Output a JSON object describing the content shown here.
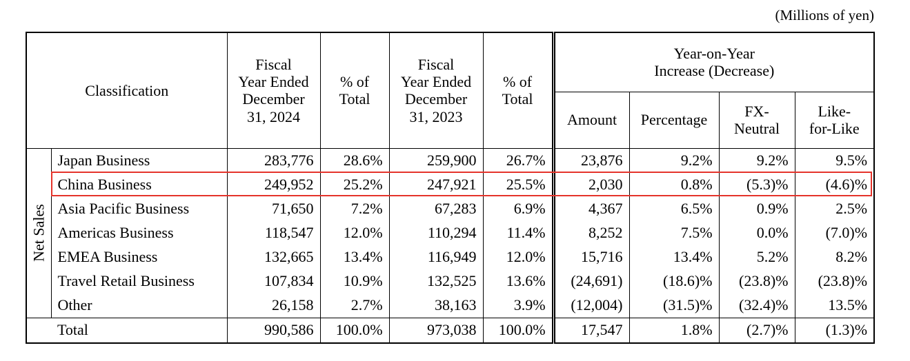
{
  "units_note": "(Millions of yen)",
  "header": {
    "classification": "Classification",
    "fy2024": [
      "Fiscal",
      "Year Ended",
      "December",
      "31, 2024"
    ],
    "pct_total": [
      "% of",
      "Total"
    ],
    "fy2023": [
      "Fiscal",
      "Year Ended",
      "December",
      "31, 2023"
    ],
    "yoy_group": [
      "Year-on-",
      "Year",
      "Increase (Decrease)"
    ],
    "amount": "Amount",
    "percentage": "Percentage",
    "fx_neutral": [
      "FX-",
      "Neutral"
    ],
    "like_for_like": [
      "Like-",
      "for-Like"
    ]
  },
  "net_sales_label": "Net Sales",
  "rows": [
    {
      "name": "Japan Business",
      "fy2024": "283,776",
      "pct2024": "28.6%",
      "fy2023": "259,900",
      "pct2023": "26.7%",
      "amount": "23,876",
      "percentage": "9.2%",
      "fx_neutral": "9.2%",
      "like_for_like": "9.5%"
    },
    {
      "name": "China Business",
      "fy2024": "249,952",
      "pct2024": "25.2%",
      "fy2023": "247,921",
      "pct2023": "25.5%",
      "amount": "2,030",
      "percentage": "0.8%",
      "fx_neutral": "(5.3)%",
      "like_for_like": "(4.6)%"
    },
    {
      "name": "Asia Pacific Business",
      "fy2024": "71,650",
      "pct2024": "7.2%",
      "fy2023": "67,283",
      "pct2023": "6.9%",
      "amount": "4,367",
      "percentage": "6.5%",
      "fx_neutral": "0.9%",
      "like_for_like": "2.5%"
    },
    {
      "name": "Americas Business",
      "fy2024": "118,547",
      "pct2024": "12.0%",
      "fy2023": "110,294",
      "pct2023": "11.4%",
      "amount": "8,252",
      "percentage": "7.5%",
      "fx_neutral": "0.0%",
      "like_for_like": "(7.0)%"
    },
    {
      "name": "EMEA Business",
      "fy2024": "132,665",
      "pct2024": "13.4%",
      "fy2023": "116,949",
      "pct2023": "12.0%",
      "amount": "15,716",
      "percentage": "13.4%",
      "fx_neutral": "5.2%",
      "like_for_like": "8.2%"
    },
    {
      "name": "Travel Retail Business",
      "fy2024": "107,834",
      "pct2024": "10.9%",
      "fy2023": "132,525",
      "pct2023": "13.6%",
      "amount": "(24,691)",
      "percentage": "(18.6)%",
      "fx_neutral": "(23.8)%",
      "like_for_like": "(23.8)%"
    },
    {
      "name": "Other",
      "fy2024": "26,158",
      "pct2024": "2.7%",
      "fy2023": "38,163",
      "pct2023": "3.9%",
      "amount": "(12,004)",
      "percentage": "(31.5)%",
      "fx_neutral": "(32.4)%",
      "like_for_like": "13.5%"
    }
  ],
  "total": {
    "name": "Total",
    "fy2024": "990,586",
    "pct2024": "100.0%",
    "fy2023": "973,038",
    "pct2023": "100.0%",
    "amount": "17,547",
    "percentage": "1.8%",
    "fx_neutral": "(2.7)%",
    "like_for_like": "(1.3)%"
  },
  "colors": {
    "highlight_border": "#e5332a",
    "text": "#000000",
    "background": "#ffffff"
  }
}
